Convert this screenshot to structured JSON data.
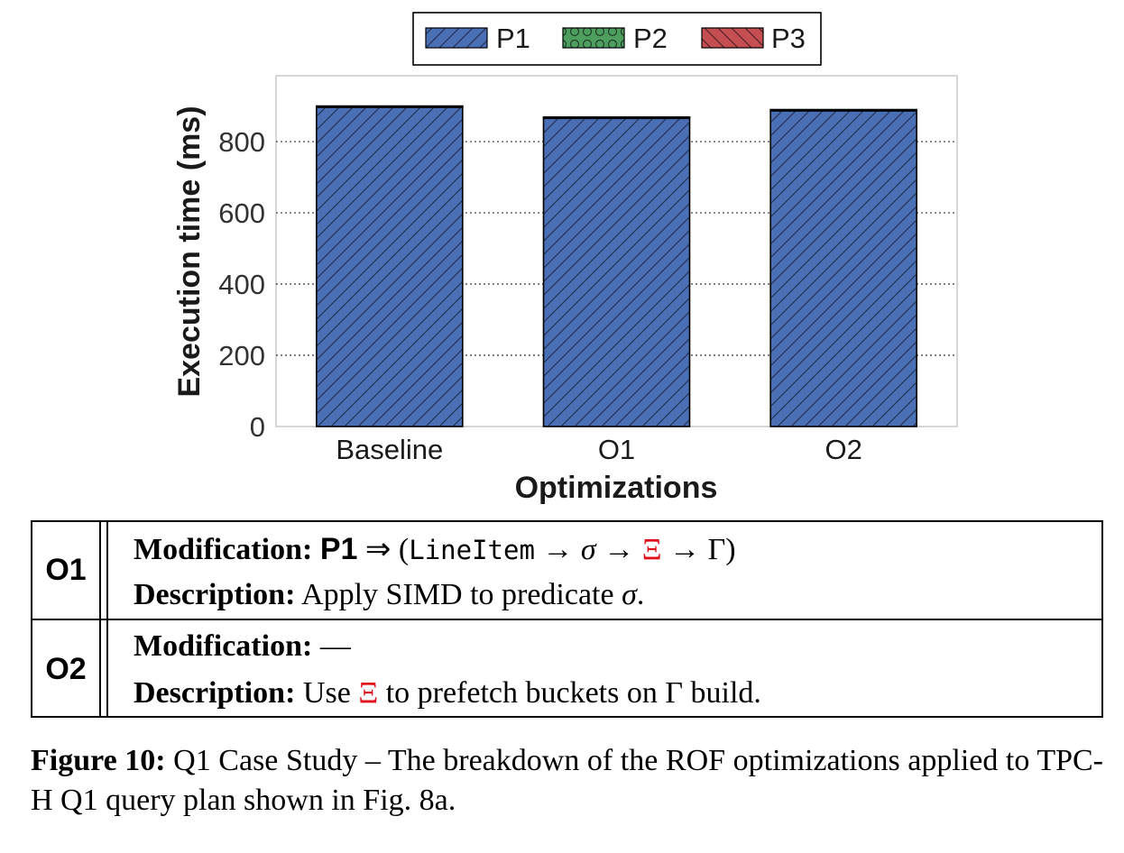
{
  "chart_data": {
    "type": "bar",
    "stacked": true,
    "categories": [
      "Baseline",
      "O1",
      "O2"
    ],
    "series": [
      {
        "name": "P1",
        "values": [
          898,
          867,
          888
        ],
        "color": "#4a6fb5",
        "pattern": "diagonal-hatch"
      },
      {
        "name": "P2",
        "values": [
          0,
          0,
          0
        ],
        "color": "#4d9e5f",
        "pattern": "circles"
      },
      {
        "name": "P3",
        "values": [
          2,
          2,
          2
        ],
        "color": "#c44e52",
        "pattern": "back-diagonal-hatch"
      }
    ],
    "xlabel": "Optimizations",
    "ylabel": "Execution time (ms)",
    "ylim": [
      0,
      985
    ],
    "yticks": [
      0,
      200,
      400,
      600,
      800
    ],
    "grid": "horizontal-dotted",
    "legend_position": "top-center"
  },
  "table": {
    "rows": [
      {
        "id": "O1",
        "modification_label": "Modification:",
        "modification_pipeline": "P1",
        "modification_arrow": "⇒",
        "modification_expr_open": "(",
        "modification_source": "LineItem",
        "modification_ops": [
          "→",
          "σ",
          "→",
          "Ξ",
          "→",
          "Γ"
        ],
        "modification_expr_close": ")",
        "description_label": "Description:",
        "description_text": "Apply SIMD to predicate",
        "description_symbol": "σ",
        "description_end": "."
      },
      {
        "id": "O2",
        "modification_label": "Modification:",
        "modification_text": "—",
        "description_label": "Description:",
        "description_pre": "Use",
        "description_symbol": "Ξ",
        "description_post": "to prefetch buckets on Γ build."
      }
    ]
  },
  "caption": {
    "label": "Figure 10:",
    "text": "Q1 Case Study – The breakdown of the ROF optimizations applied to TPC-H Q1 query plan shown in Fig. 8a."
  }
}
